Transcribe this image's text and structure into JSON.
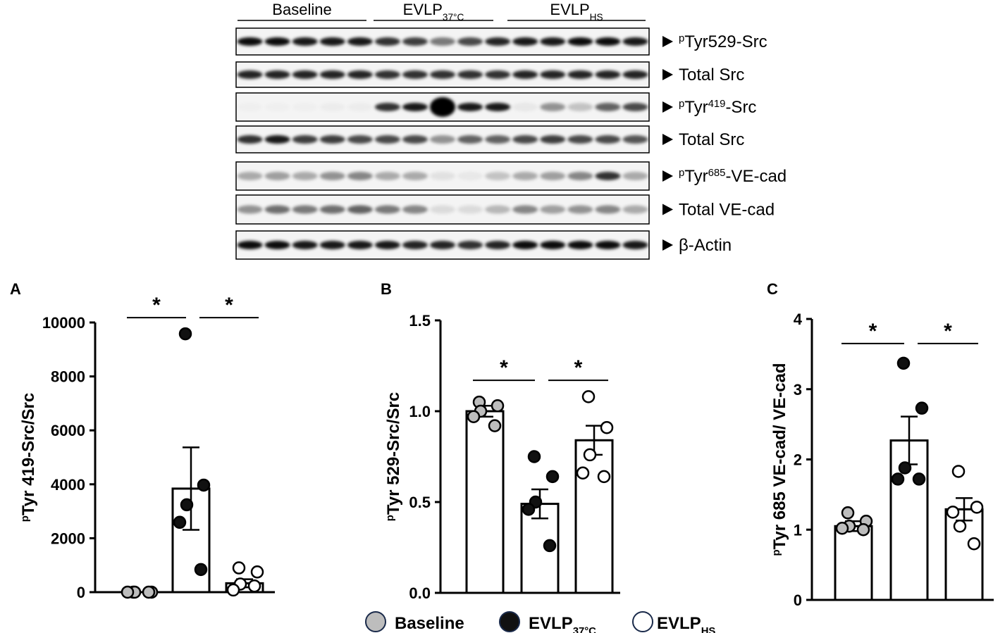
{
  "blot": {
    "groups": [
      {
        "label": [
          {
            "text": "Baseline"
          }
        ]
      },
      {
        "label": [
          {
            "text": "EVLP"
          },
          {
            "text": "37°C",
            "script": "sub"
          }
        ]
      },
      {
        "label": [
          {
            "text": "EVLP"
          },
          {
            "text": "HS",
            "script": "sub"
          }
        ]
      }
    ],
    "rows": [
      {
        "label": [
          {
            "text": "p",
            "script": "super"
          },
          {
            "text": "Tyr529-Src"
          }
        ]
      },
      {
        "label": [
          {
            "text": "Total Src"
          }
        ]
      },
      {
        "label": [
          {
            "text": "p",
            "script": "super"
          },
          {
            "text": "Tyr"
          },
          {
            "text": "419",
            "script": "super"
          },
          {
            "text": "-Src"
          }
        ]
      },
      {
        "label": [
          {
            "text": "Total Src"
          }
        ]
      },
      {
        "label": [
          {
            "text": "p",
            "script": "super"
          },
          {
            "text": "Tyr"
          },
          {
            "text": "685",
            "script": "super"
          },
          {
            "text": "-VE-cad"
          }
        ]
      },
      {
        "label": [
          {
            "text": "Total VE-cad"
          }
        ]
      },
      {
        "label": [
          {
            "text": "β-Actin"
          }
        ]
      }
    ]
  },
  "chart_data": [
    {
      "type": "bar",
      "panel": "A",
      "ylabel": [
        {
          "text": "p",
          "script": "super"
        },
        {
          "text": "Tyr 419-Src/Src"
        }
      ],
      "values": [
        1,
        3840,
        330
      ],
      "errors": [
        0.05,
        1530,
        150
      ],
      "points": [
        [
          1,
          1,
          1,
          1,
          1
        ],
        [
          9580,
          3970,
          3240,
          2590,
          840
        ],
        [
          900,
          750,
          300,
          80,
          230
        ]
      ],
      "colors": [
        "#bdbdbd",
        "#111111",
        "#ffffff"
      ],
      "ylim": [
        0,
        10000
      ],
      "yticks": [
        0,
        2000,
        4000,
        6000,
        8000,
        10000
      ],
      "significance": [
        {
          "groups": [
            0,
            1
          ],
          "y": 10180,
          "label": "*"
        },
        {
          "groups": [
            1,
            2
          ],
          "y": 10180,
          "label": "*"
        }
      ]
    },
    {
      "type": "bar",
      "panel": "B",
      "ylabel": [
        {
          "text": "p",
          "script": "super"
        },
        {
          "text": "Tyr 529-Src/Src"
        }
      ],
      "values": [
        1.0,
        0.49,
        0.84
      ],
      "errors": [
        0.03,
        0.08,
        0.08
      ],
      "points": [
        [
          1.05,
          1.03,
          1.0,
          0.97,
          0.92
        ],
        [
          0.75,
          0.64,
          0.5,
          0.46,
          0.26
        ],
        [
          1.08,
          0.91,
          0.76,
          0.66,
          0.64
        ]
      ],
      "colors": [
        "#bdbdbd",
        "#111111",
        "#ffffff"
      ],
      "ylim": [
        0,
        1.5
      ],
      "yticks": [
        {
          "value": 0,
          "label": "0.0"
        },
        0.5,
        {
          "value": 1,
          "label": "1.0"
        },
        1.5
      ],
      "significance": [
        {
          "groups": [
            0,
            1
          ],
          "y": 1.17,
          "label": "*"
        },
        {
          "groups": [
            1,
            2
          ],
          "y": 1.17,
          "label": "*"
        }
      ]
    },
    {
      "type": "bar",
      "panel": "C",
      "ylabel": [
        {
          "text": "p",
          "script": "super"
        },
        {
          "text": "Tyr 685 VE-cad/ VE-cad"
        }
      ],
      "values": [
        1.05,
        2.27,
        1.29
      ],
      "errors": [
        0.07,
        0.34,
        0.16
      ],
      "points": [
        [
          1.24,
          1.12,
          1.05,
          1.02,
          1.0
        ],
        [
          3.37,
          2.73,
          1.88,
          1.72,
          1.72
        ],
        [
          1.83,
          1.32,
          1.05,
          1.25,
          0.8
        ]
      ],
      "colors": [
        "#bdbdbd",
        "#111111",
        "#ffffff"
      ],
      "ylim": [
        0,
        4
      ],
      "yticks": [
        0,
        1,
        2,
        3,
        4
      ],
      "significance": [
        {
          "groups": [
            0,
            1
          ],
          "y": 3.65,
          "label": "*"
        },
        {
          "groups": [
            1,
            2
          ],
          "y": 3.65,
          "label": "*"
        }
      ]
    }
  ],
  "legend": {
    "items": [
      {
        "label": [
          {
            "text": "Baseline"
          }
        ],
        "color": "#bdbdbd"
      },
      {
        "label": [
          {
            "text": "EVLP"
          },
          {
            "text": "37°C",
            "script": "sub"
          }
        ],
        "color": "#111111"
      },
      {
        "label": [
          {
            "text": "EVLP"
          },
          {
            "text": "HS",
            "script": "sub"
          }
        ],
        "color": "#ffffff"
      }
    ]
  }
}
